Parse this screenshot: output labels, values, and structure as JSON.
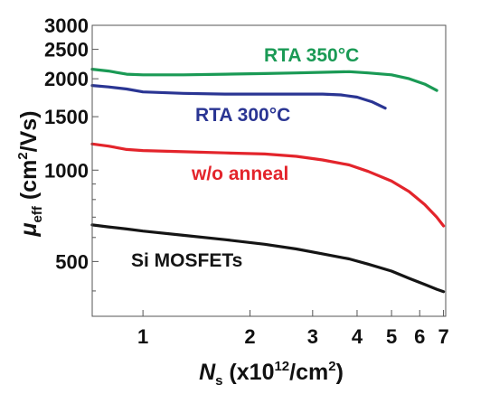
{
  "chart_data": {
    "type": "line",
    "xscale": "log",
    "yscale": "log",
    "xlim": [
      0.72,
      7.1
    ],
    "ylim": [
      330,
      3000
    ],
    "grid": false,
    "xlabel": {
      "symbol": "N",
      "sub": "s",
      "pre": " (x10",
      "sup": "12",
      "mid": "/cm",
      "sup2": "2",
      "post": ")"
    },
    "ylabel": {
      "symbol": "μ",
      "sub": "eff",
      "pre": " (cm",
      "sup": "2",
      "post": "/Vs)"
    },
    "xticks": [
      {
        "value": 1,
        "label": "1"
      },
      {
        "value": 2,
        "label": "2"
      },
      {
        "value": 3,
        "label": "3"
      },
      {
        "value": 4,
        "label": "4"
      },
      {
        "value": 5,
        "label": "5"
      },
      {
        "value": 6,
        "label": "6"
      },
      {
        "value": 7,
        "label": "7"
      }
    ],
    "yticks": [
      {
        "value": 500,
        "label": "500"
      },
      {
        "value": 1000,
        "label": "1000"
      },
      {
        "value": 1500,
        "label": "1500"
      },
      {
        "value": 2000,
        "label": "2000"
      },
      {
        "value": 2500,
        "label": "2500"
      },
      {
        "value": 3000,
        "label": "3000"
      }
    ],
    "series": [
      {
        "name": "RTA 350°C",
        "color": "#1a9a55",
        "points": [
          [
            0.72,
            2150
          ],
          [
            0.8,
            2120
          ],
          [
            0.9,
            2070
          ],
          [
            1.0,
            2060
          ],
          [
            1.3,
            2060
          ],
          [
            1.7,
            2070
          ],
          [
            2.2,
            2080
          ],
          [
            2.7,
            2090
          ],
          [
            3.2,
            2100
          ],
          [
            3.8,
            2110
          ],
          [
            4.3,
            2090
          ],
          [
            5.0,
            2060
          ],
          [
            5.6,
            2000
          ],
          [
            6.2,
            1920
          ],
          [
            6.7,
            1830
          ]
        ]
      },
      {
        "name": "RTA 300°C",
        "color": "#2a3593",
        "points": [
          [
            0.72,
            1900
          ],
          [
            0.8,
            1880
          ],
          [
            0.9,
            1850
          ],
          [
            1.0,
            1810
          ],
          [
            1.3,
            1790
          ],
          [
            1.7,
            1780
          ],
          [
            2.2,
            1780
          ],
          [
            2.7,
            1780
          ],
          [
            3.2,
            1780
          ],
          [
            3.6,
            1770
          ],
          [
            4.0,
            1740
          ],
          [
            4.4,
            1680
          ],
          [
            4.8,
            1600
          ]
        ]
      },
      {
        "name": "w/o anneal",
        "color": "#e3242b",
        "points": [
          [
            0.72,
            1220
          ],
          [
            0.8,
            1200
          ],
          [
            0.9,
            1170
          ],
          [
            1.0,
            1160
          ],
          [
            1.3,
            1150
          ],
          [
            1.7,
            1140
          ],
          [
            2.2,
            1130
          ],
          [
            2.7,
            1110
          ],
          [
            3.2,
            1080
          ],
          [
            3.8,
            1040
          ],
          [
            4.3,
            990
          ],
          [
            5.0,
            920
          ],
          [
            5.6,
            850
          ],
          [
            6.2,
            770
          ],
          [
            6.7,
            700
          ],
          [
            7.0,
            655
          ]
        ]
      },
      {
        "name": "Si MOSFETs",
        "color": "#151515",
        "points": [
          [
            0.72,
            660
          ],
          [
            0.8,
            650
          ],
          [
            0.9,
            640
          ],
          [
            1.0,
            630
          ],
          [
            1.3,
            610
          ],
          [
            1.7,
            590
          ],
          [
            2.2,
            570
          ],
          [
            2.7,
            550
          ],
          [
            3.2,
            530
          ],
          [
            3.8,
            510
          ],
          [
            4.3,
            490
          ],
          [
            5.0,
            465
          ],
          [
            5.6,
            440
          ],
          [
            6.2,
            420
          ],
          [
            6.7,
            405
          ],
          [
            7.0,
            398
          ]
        ]
      }
    ]
  }
}
